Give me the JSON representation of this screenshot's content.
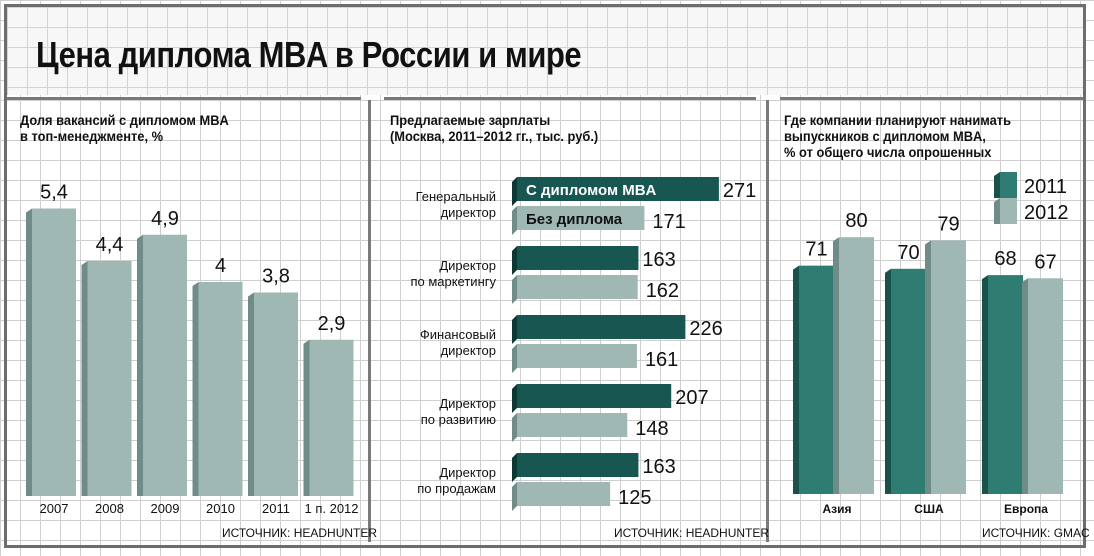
{
  "title": "Цена диплома MBA в России и мире",
  "colors": {
    "teal": "#2f7c73",
    "teal_dark": "#1b514b",
    "gray": "#9fb8b4",
    "gray_dark": "#6f8c88",
    "dark_bar": "#175651",
    "dark_bar_side": "#0d3733"
  },
  "chart_data": [
    {
      "type": "bar",
      "title": "Доля вакансий с дипломом MBA\nв топ-менеджменте, %",
      "categories": [
        "2007",
        "2008",
        "2009",
        "2010",
        "2011",
        "1 п. 2012"
      ],
      "values": [
        5.4,
        4.4,
        4.9,
        4,
        3.8,
        2.9
      ],
      "value_labels": [
        "5,4",
        "4,4",
        "4,9",
        "4",
        "3,8",
        "2,9"
      ],
      "source": "ИСТОЧНИК: HEADHUNTER"
    },
    {
      "type": "bar",
      "orientation": "horizontal",
      "title": "Предлагаемые зарплаты\n(Москва, 2011–2012 гг., тыс. руб.)",
      "categories": [
        "Генеральный\nдиректор",
        "Директор\nпо маркетингу",
        "Финансовый\nдиректор",
        "Директор\nпо развитию",
        "Директор\nпо продажам"
      ],
      "series": [
        {
          "name": "С дипломом MBA",
          "values": [
            271,
            163,
            226,
            207,
            163
          ]
        },
        {
          "name": "Без диплома",
          "values": [
            171,
            162,
            161,
            148,
            125
          ]
        }
      ],
      "source": "ИСТОЧНИК: HEADHUNTER"
    },
    {
      "type": "bar",
      "title": "Где компании планируют нанимать\nвыпускников с дипломом MBA,\n% от общего числа опрошенных",
      "categories": [
        "Азия",
        "США",
        "Европа"
      ],
      "series": [
        {
          "name": "2011",
          "values": [
            71,
            70,
            68
          ]
        },
        {
          "name": "2012",
          "values": [
            80,
            79,
            67
          ]
        }
      ],
      "source": "ИСТОЧНИК: GMAC"
    }
  ]
}
